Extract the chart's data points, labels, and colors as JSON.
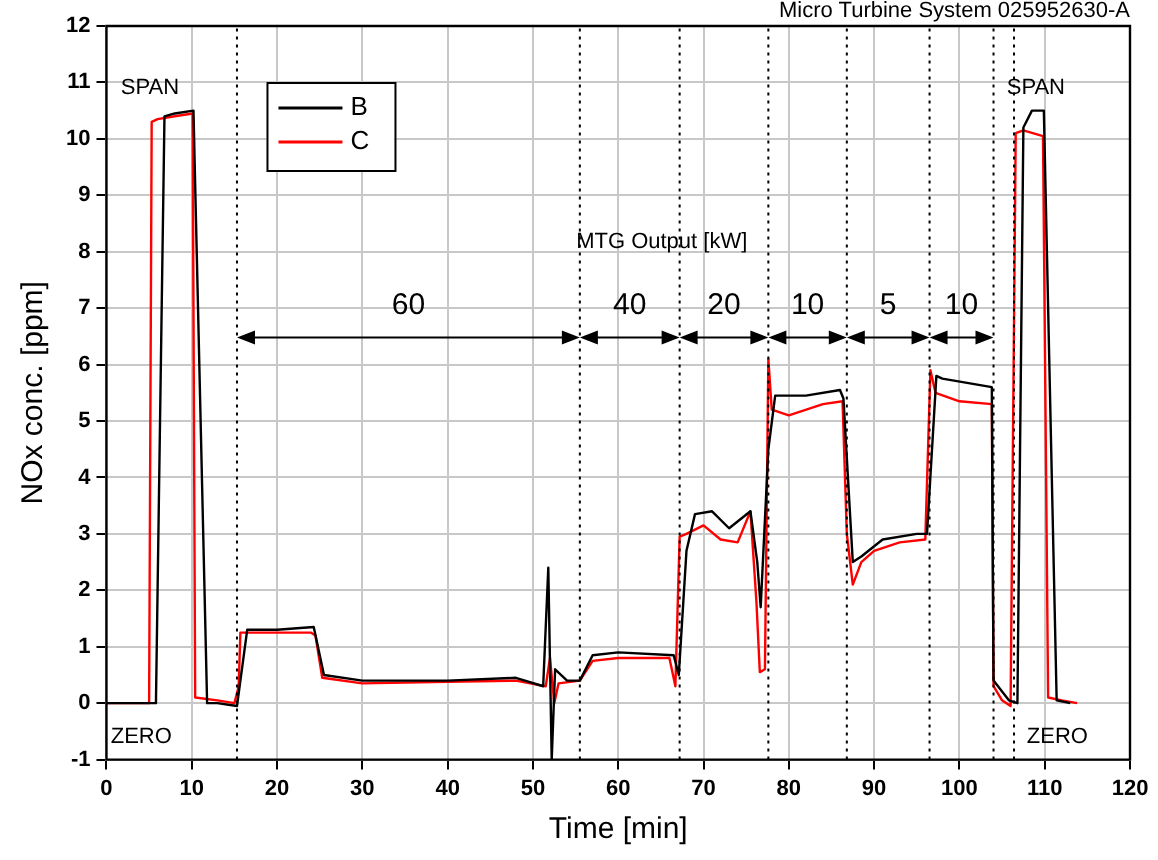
{
  "chart_data": {
    "type": "line",
    "title": "Micro Turbine System 025952630-A",
    "xlabel": "Time [min]",
    "ylabel": "NOx conc. [ppm]",
    "xlim": [
      0,
      120
    ],
    "xticks": [
      0,
      10,
      20,
      30,
      40,
      50,
      60,
      70,
      80,
      90,
      100,
      110,
      120
    ],
    "ylim": [
      -1,
      12
    ],
    "yticks": [
      -1,
      0,
      1,
      2,
      3,
      4,
      5,
      6,
      7,
      8,
      9,
      10,
      11,
      12
    ],
    "grid": true,
    "legend": "top left",
    "marker": "none",
    "line_style": "solid",
    "series": [
      {
        "name": "B",
        "color": "#000000",
        "x": [
          0,
          5.2,
          5.8,
          6.8,
          8,
          10.2,
          11.8,
          13,
          15.3,
          16.5,
          20,
          24.3,
          25.5,
          30,
          40,
          48,
          51.2,
          51.8,
          52.2,
          52.6,
          54,
          55.5,
          57,
          60,
          66.5,
          67.1,
          68,
          69,
          71,
          73,
          75.5,
          76.3,
          76.7,
          77.6,
          78.4,
          82,
          86,
          86.4,
          87.5,
          88.5,
          91,
          95,
          96.2,
          97.3,
          98,
          103.8,
          104,
          105.8,
          106.8,
          107.5,
          108.5,
          109.9,
          111.4,
          113
        ],
        "values": [
          0,
          0,
          0,
          10.4,
          10.45,
          10.5,
          0,
          0,
          -0.05,
          1.3,
          1.3,
          1.35,
          0.5,
          0.4,
          0.4,
          0.45,
          0.3,
          2.4,
          -1,
          0.6,
          0.4,
          0.4,
          0.85,
          0.9,
          0.85,
          0.5,
          2.7,
          3.35,
          3.4,
          3.1,
          3.4,
          2.5,
          1.7,
          4.5,
          5.45,
          5.45,
          5.55,
          5.4,
          2.5,
          2.6,
          2.9,
          3,
          3,
          5.8,
          5.75,
          5.6,
          0.4,
          0.05,
          0,
          10.2,
          10.5,
          10.5,
          0.05,
          0
        ]
      },
      {
        "name": "C",
        "color": "#ff0000",
        "x": [
          0,
          5,
          5.3,
          6,
          8,
          10.1,
          10.4,
          13,
          15,
          15.5,
          15.7,
          20,
          24,
          24.5,
          25.3,
          30,
          40,
          48,
          51.5,
          52,
          52.5,
          53,
          55.5,
          57,
          60,
          66,
          66.7,
          67.2,
          68,
          70,
          72,
          74,
          75.5,
          76.2,
          76.6,
          77.2,
          77.6,
          78,
          80,
          84,
          86.3,
          86.8,
          87.5,
          88.5,
          90,
          93,
          96,
          96.6,
          97.2,
          100,
          103.8,
          104,
          105,
          106,
          106.6,
          107.5,
          109.8,
          110.4,
          112,
          113.8
        ],
        "values": [
          0,
          0,
          10.3,
          10.35,
          10.4,
          10.45,
          0.1,
          0.05,
          0,
          0.3,
          1.25,
          1.25,
          1.25,
          1.2,
          0.45,
          0.35,
          0.38,
          0.4,
          0.3,
          0.8,
          0,
          0.35,
          0.4,
          0.75,
          0.8,
          0.8,
          0.3,
          2.95,
          3,
          3.15,
          2.9,
          2.85,
          3.4,
          1.8,
          0.55,
          0.6,
          6.1,
          5.2,
          5.1,
          5.3,
          5.35,
          3,
          2.1,
          2.5,
          2.7,
          2.85,
          2.9,
          5.9,
          5.5,
          5.35,
          5.3,
          0.3,
          0.05,
          -0.05,
          10.1,
          10.15,
          10.05,
          0.1,
          0.05,
          0
        ]
      }
    ],
    "ref_lines": [
      {
        "axis": "x",
        "value": 15.3,
        "line_style": "dotted",
        "color": "#000000"
      },
      {
        "axis": "x",
        "value": 55.5,
        "line_style": "dotted",
        "color": "#000000"
      },
      {
        "axis": "x",
        "value": 67.2,
        "line_style": "dotted",
        "color": "#000000"
      },
      {
        "axis": "x",
        "value": 77.6,
        "line_style": "dotted",
        "color": "#000000"
      },
      {
        "axis": "x",
        "value": 86.8,
        "line_style": "dotted",
        "color": "#000000"
      },
      {
        "axis": "x",
        "value": 96.5,
        "line_style": "dotted",
        "color": "#000000"
      },
      {
        "axis": "x",
        "value": 104,
        "line_style": "dotted",
        "color": "#000000"
      },
      {
        "axis": "x",
        "value": 106.4,
        "line_style": "dotted",
        "color": "#000000"
      }
    ],
    "annotations": [
      "SPAN",
      "SPAN",
      "ZERO",
      "ZERO",
      "MTG Output [kW]",
      "60",
      "40",
      "20",
      "10",
      "5",
      "10"
    ]
  }
}
